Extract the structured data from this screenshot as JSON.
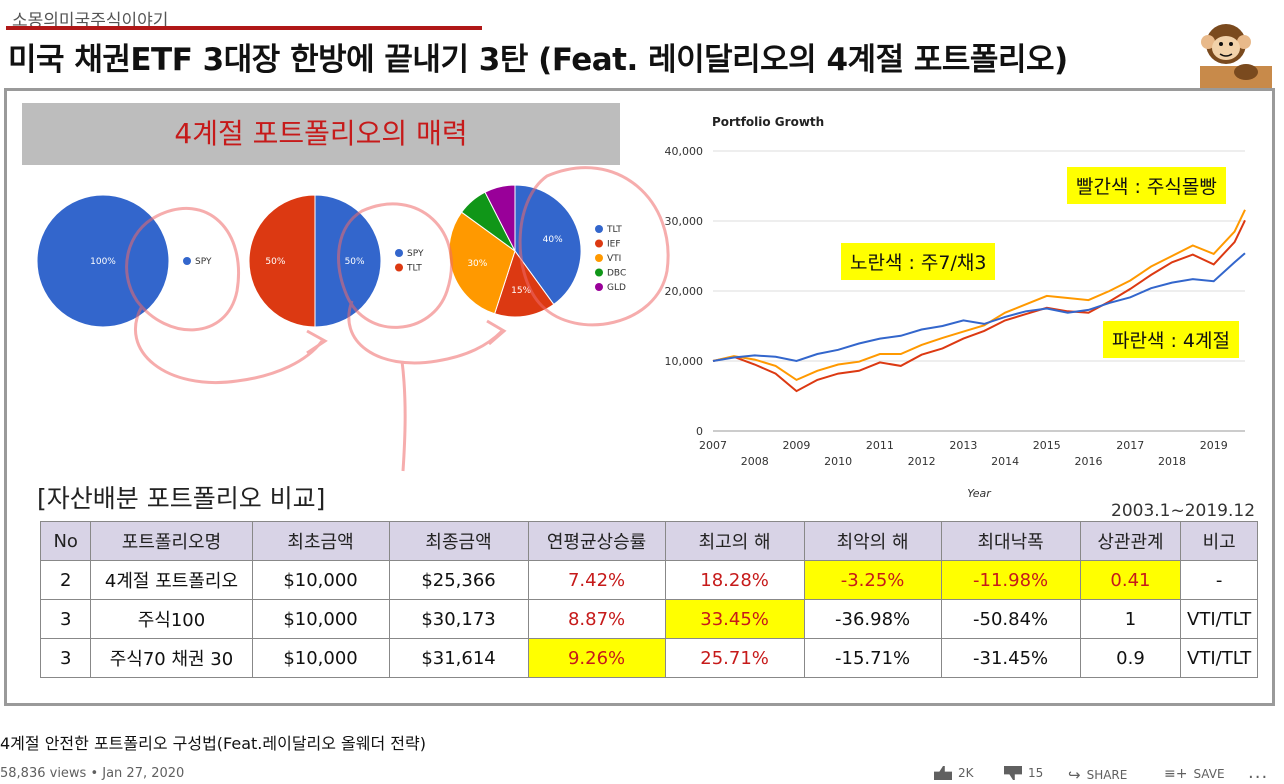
{
  "header": {
    "channel": "소몽의미국주식이야기",
    "title": "미국 채권ETF 3대장 한방에 끝내기 3탄 (Feat. 레이달리오의 4계절 포트폴리오)"
  },
  "slide": {
    "banner": "4계절 포트폴리오의 매력",
    "pies": [
      {
        "slices": [
          {
            "label": "100%",
            "value": 100,
            "color": "#3366cc"
          }
        ],
        "legend": [
          {
            "name": "SPY",
            "color": "#3366cc"
          }
        ]
      },
      {
        "slices": [
          {
            "label": "50%",
            "value": 50,
            "color": "#3366cc"
          },
          {
            "label": "50%",
            "value": 50,
            "color": "#dc3912"
          }
        ],
        "legend": [
          {
            "name": "SPY",
            "color": "#3366cc"
          },
          {
            "name": "TLT",
            "color": "#dc3912"
          }
        ]
      },
      {
        "slices": [
          {
            "label": "40%",
            "value": 40,
            "color": "#3366cc"
          },
          {
            "label": "15%",
            "value": 15,
            "color": "#dc3912"
          },
          {
            "label": "30%",
            "value": 30,
            "color": "#ff9900"
          },
          {
            "label": "",
            "value": 7.5,
            "color": "#109618"
          },
          {
            "label": "",
            "value": 7.5,
            "color": "#990099"
          }
        ],
        "legend": [
          {
            "name": "TLT",
            "color": "#3366cc"
          },
          {
            "name": "IEF",
            "color": "#dc3912"
          },
          {
            "name": "VTI",
            "color": "#ff9900"
          },
          {
            "name": "DBC",
            "color": "#109618"
          },
          {
            "name": "GLD",
            "color": "#990099"
          }
        ]
      }
    ],
    "callouts": {
      "red": "빨간색 : 주식몰빵",
      "yellow": "노란색 : 주7/채3",
      "blue": "파란색 : 4계절"
    },
    "compare_title": "[자산배분 포트폴리오 비교]",
    "period": "2003.1~2019.12",
    "table": {
      "headers": [
        "No",
        "포트폴리오명",
        "최초금액",
        "최종금액",
        "연평균상승률",
        "최고의 해",
        "최악의 해",
        "최대낙폭",
        "상관관계",
        "비고"
      ],
      "rows": [
        [
          "2",
          "4계절 포트폴리오",
          "$10,000",
          "$25,366",
          "7.42%",
          "18.28%",
          "-3.25%",
          "-11.98%",
          "0.41",
          "-"
        ],
        [
          "3",
          "주식100",
          "$10,000",
          "$30,173",
          "8.87%",
          "33.45%",
          "-36.98%",
          "-50.84%",
          "1",
          "VTI/TLT"
        ],
        [
          "3",
          "주식70 채권 30",
          "$10,000",
          "$31,614",
          "9.26%",
          "25.71%",
          "-15.71%",
          "-31.45%",
          "0.9",
          "VTI/TLT"
        ]
      ]
    }
  },
  "chart_data": {
    "type": "line",
    "title": "Portfolio Growth",
    "xlabel": "Year",
    "ylabel": "",
    "xlim": [
      2007,
      2019.75
    ],
    "ylim": [
      0,
      40000
    ],
    "x_ticks": [
      "2007",
      "2008",
      "2009",
      "2010",
      "2011",
      "2012",
      "2013",
      "2014",
      "2015",
      "2016",
      "2017",
      "2018",
      "2019"
    ],
    "y_ticks": [
      "0",
      "10,000",
      "20,000",
      "30,000",
      "40,000"
    ],
    "grid": true,
    "x": [
      2007,
      2007.5,
      2008,
      2008.5,
      2009,
      2009.5,
      2010,
      2010.5,
      2011,
      2011.5,
      2012,
      2012.5,
      2013,
      2013.5,
      2014,
      2014.5,
      2015,
      2015.5,
      2016,
      2016.5,
      2017,
      2017.5,
      2018,
      2018.5,
      2019,
      2019.5,
      2019.75
    ],
    "series": [
      {
        "color": "#dc3912",
        "values": [
          10000,
          10600,
          9500,
          8200,
          5700,
          7300,
          8200,
          8600,
          9800,
          9300,
          10900,
          11800,
          13200,
          14300,
          15800,
          16700,
          17600,
          17100,
          16900,
          18500,
          20300,
          22300,
          24100,
          25200,
          23800,
          27000,
          30100
        ]
      },
      {
        "color": "#ff9900",
        "values": [
          10000,
          10700,
          10200,
          9300,
          7300,
          8600,
          9500,
          9900,
          11000,
          11000,
          12300,
          13300,
          14200,
          15100,
          16900,
          18100,
          19300,
          19000,
          18700,
          20000,
          21500,
          23500,
          25000,
          26500,
          25300,
          28500,
          31600
        ]
      },
      {
        "color": "#3366cc",
        "values": [
          10000,
          10500,
          10800,
          10600,
          10000,
          11000,
          11600,
          12500,
          13200,
          13600,
          14500,
          15000,
          15800,
          15300,
          16300,
          17100,
          17500,
          16900,
          17300,
          18300,
          19100,
          20400,
          21200,
          21700,
          21400,
          24100,
          25400
        ]
      }
    ]
  },
  "video": {
    "title": "4계절 안전한 포트폴리오 구성법(Feat.레이달리오 올웨더 전략)",
    "views": "58,836 views • Jan 27, 2020",
    "likes": "2K",
    "dislikes": "15",
    "share": "SHARE",
    "save": "SAVE",
    "more": "..."
  }
}
